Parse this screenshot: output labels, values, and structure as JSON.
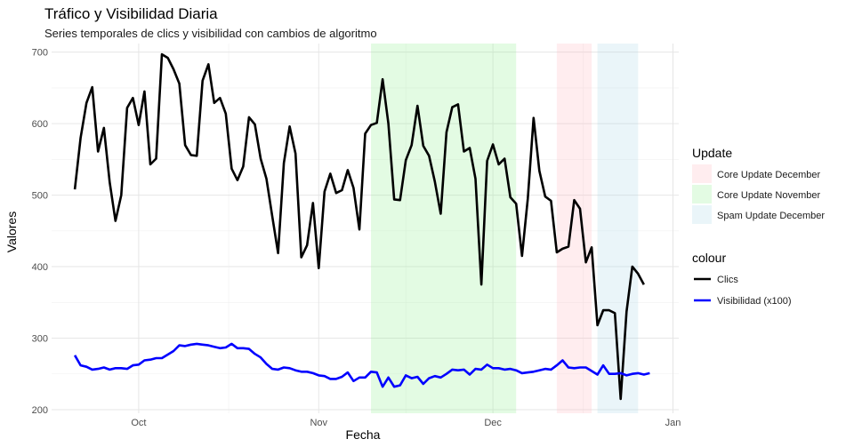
{
  "chart_data": {
    "type": "line",
    "title": "Tráfico y Visibilidad Diaria",
    "subtitle": "Series temporales de clics y visibilidad con cambios de algoritmo",
    "xlabel": "Fecha",
    "ylabel": "Valores",
    "xlim": [
      "2023-09-16",
      "2024-01-02"
    ],
    "ylim": [
      195,
      712
    ],
    "x_ticks": [
      {
        "date": "2023-10-01",
        "label": "Oct"
      },
      {
        "date": "2023-11-01",
        "label": "Nov"
      },
      {
        "date": "2023-12-01",
        "label": "Dec"
      },
      {
        "date": "2024-01-01",
        "label": "Jan"
      }
    ],
    "y_ticks": [
      200,
      300,
      400,
      500,
      600,
      700
    ],
    "grid": true,
    "legend_position": "right",
    "start_date": "2023-09-20",
    "series": [
      {
        "name": "Clics",
        "color": "#000000",
        "values": [
          508,
          580,
          629,
          651,
          561,
          594,
          518,
          464,
          500,
          622,
          636,
          598,
          645,
          543,
          551,
          697,
          692,
          676,
          656,
          570,
          556,
          555,
          660,
          683,
          629,
          636,
          614,
          537,
          521,
          540,
          609,
          599,
          551,
          523,
          470,
          419,
          545,
          596,
          558,
          413,
          430,
          489,
          398,
          505,
          530,
          503,
          507,
          535,
          510,
          452,
          586,
          598,
          601,
          662,
          600,
          494,
          493,
          549,
          570,
          625,
          569,
          555,
          519,
          474,
          588,
          623,
          627,
          561,
          566,
          523,
          375,
          548,
          571,
          543,
          551,
          497,
          488,
          415,
          495,
          608,
          534,
          498,
          492,
          420,
          425,
          428,
          493,
          481,
          406,
          427,
          318,
          339,
          339,
          335,
          215,
          337,
          400,
          390,
          375
        ]
      },
      {
        "name": "Visibilidad (x100)",
        "color": "#0000ff",
        "values": [
          276,
          262,
          260,
          256,
          257,
          259,
          256,
          258,
          258,
          257,
          262,
          263,
          269,
          270,
          272,
          272,
          277,
          282,
          290,
          289,
          291,
          292,
          291,
          290,
          288,
          286,
          287,
          292,
          286,
          286,
          285,
          278,
          273,
          264,
          257,
          256,
          259,
          258,
          255,
          253,
          253,
          251,
          248,
          247,
          243,
          243,
          246,
          252,
          240,
          245,
          245,
          253,
          252,
          232,
          245,
          232,
          234,
          248,
          244,
          246,
          236,
          244,
          247,
          245,
          250,
          256,
          255,
          256,
          249,
          257,
          256,
          263,
          258,
          258,
          256,
          257,
          255,
          251,
          252,
          253,
          255,
          257,
          256,
          262,
          269,
          259,
          258,
          259,
          259,
          254,
          249,
          262,
          250,
          250,
          251,
          248,
          250,
          251,
          249,
          251
        ]
      }
    ],
    "annotations": [
      {
        "label": "Core Update November",
        "start": "2023-11-10",
        "end": "2023-12-05",
        "color": "#90ee90",
        "opacity": 0.25
      },
      {
        "label": "Core Update December",
        "start": "2023-12-12",
        "end": "2023-12-18",
        "color": "#ffb6c1",
        "opacity": 0.25
      },
      {
        "label": "Spam Update December",
        "start": "2023-12-19",
        "end": "2023-12-26",
        "color": "#add8e6",
        "opacity": 0.25
      }
    ],
    "legends": [
      {
        "title": "Update",
        "entries": [
          "Core Update December",
          "Core Update November",
          "Spam Update December"
        ],
        "colors": [
          "#ffb6c1",
          "#90ee90",
          "#add8e6"
        ]
      },
      {
        "title": "colour",
        "entries": [
          "Clics",
          "Visibilidad (x100)"
        ],
        "colors": [
          "#000000",
          "#0000ff"
        ]
      }
    ]
  }
}
